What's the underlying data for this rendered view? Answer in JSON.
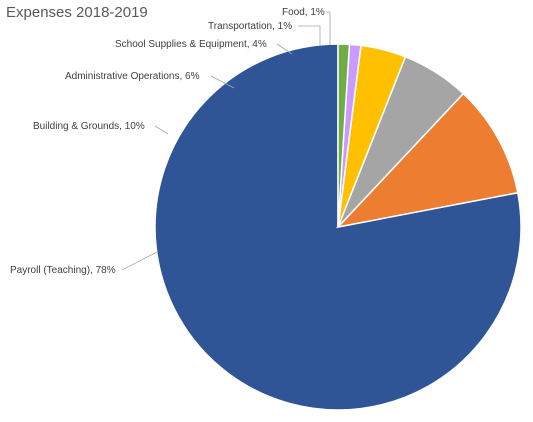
{
  "chart_data": {
    "type": "pie",
    "title": "Expenses 2018-2019",
    "slices": [
      {
        "label": "Payroll (Teaching), 78%",
        "name": "Payroll (Teaching)",
        "value": 78,
        "color": "#2F5597"
      },
      {
        "label": "Building & Grounds, 10%",
        "name": "Building & Grounds",
        "value": 10,
        "color": "#ED7D31"
      },
      {
        "label": "Administrative Operations, 6%",
        "name": "Administrative Operations",
        "value": 6,
        "color": "#A5A5A5"
      },
      {
        "label": "School Supplies & Equipment, 4%",
        "name": "School Supplies & Equipment",
        "value": 4,
        "color": "#FFC000"
      },
      {
        "label": "Transportation, 1%",
        "name": "Transportation",
        "value": 1,
        "color": "#CC99FF"
      },
      {
        "label": "Food, 1%",
        "name": "Food",
        "value": 1,
        "color": "#70AD47"
      }
    ],
    "start_angle_deg": 0,
    "direction": "counterclockwise"
  }
}
